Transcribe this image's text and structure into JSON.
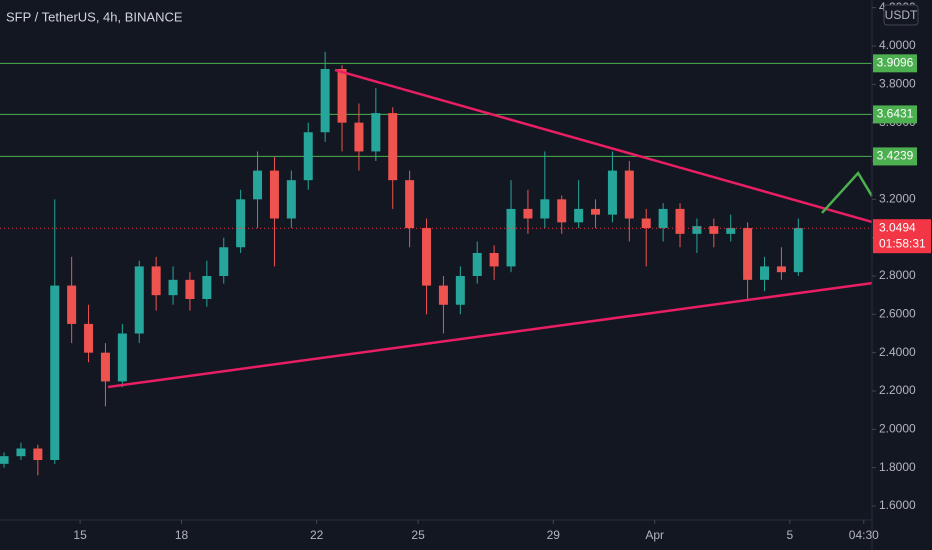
{
  "chart_data": {
    "type": "candlestick",
    "title": "SFP / TetherUS, 4h, BINANCE",
    "currency": "USDT",
    "x": [
      12.75,
      13.25,
      13.75,
      14.25,
      14.75,
      15.25,
      15.75,
      16.25,
      16.75,
      17.25,
      17.75,
      18.25,
      18.75,
      19.25,
      19.75,
      20.25,
      20.75,
      21.25,
      21.75,
      22.25,
      22.75,
      23.25,
      23.75,
      24.25,
      24.75,
      25.25,
      25.75,
      26.25,
      26.75,
      27.25,
      27.75,
      28.25,
      28.75,
      29.25,
      29.75,
      30.25,
      30.75,
      31.25,
      31.75,
      32.25,
      32.75,
      33.25,
      33.75,
      34.25,
      34.75,
      35.25,
      35.75,
      36.25
    ],
    "open": [
      1.82,
      1.86,
      1.9,
      1.84,
      2.75,
      2.55,
      2.4,
      2.25,
      2.5,
      2.85,
      2.7,
      2.78,
      2.68,
      2.8,
      2.95,
      3.2,
      3.35,
      3.1,
      3.3,
      3.55,
      3.88,
      3.6,
      3.45,
      3.65,
      3.3,
      3.05,
      2.75,
      2.65,
      2.8,
      2.92,
      2.85,
      3.15,
      3.1,
      3.2,
      3.08,
      3.15,
      3.12,
      3.35,
      3.1,
      3.05,
      3.15,
      3.02,
      3.06,
      3.02,
      3.05,
      2.78,
      2.85,
      2.82
    ],
    "high": [
      1.88,
      1.93,
      1.92,
      3.2,
      2.9,
      2.65,
      2.45,
      2.55,
      2.88,
      2.9,
      2.85,
      2.82,
      2.88,
      3.0,
      3.25,
      3.45,
      3.42,
      3.35,
      3.6,
      3.97,
      3.9,
      3.7,
      3.78,
      3.68,
      3.35,
      3.1,
      2.8,
      2.85,
      2.98,
      2.96,
      3.3,
      3.25,
      3.45,
      3.22,
      3.3,
      3.2,
      3.45,
      3.4,
      3.15,
      3.18,
      3.18,
      3.1,
      3.1,
      3.12,
      3.08,
      2.9,
      2.95,
      3.1
    ],
    "low": [
      1.8,
      1.84,
      1.76,
      1.82,
      2.45,
      2.35,
      2.12,
      2.22,
      2.45,
      2.62,
      2.65,
      2.62,
      2.64,
      2.76,
      2.92,
      3.05,
      2.85,
      3.05,
      3.25,
      3.5,
      3.45,
      3.35,
      3.4,
      3.15,
      2.95,
      2.6,
      2.5,
      2.6,
      2.76,
      2.78,
      2.82,
      3.02,
      3.05,
      3.02,
      3.05,
      3.05,
      3.08,
      2.98,
      2.85,
      2.98,
      2.95,
      2.92,
      2.95,
      2.98,
      2.68,
      2.72,
      2.78,
      2.8
    ],
    "close": [
      1.86,
      1.9,
      1.84,
      2.75,
      2.55,
      2.4,
      2.25,
      2.5,
      2.85,
      2.7,
      2.78,
      2.68,
      2.8,
      2.95,
      3.2,
      3.35,
      3.1,
      3.3,
      3.55,
      3.88,
      3.6,
      3.45,
      3.65,
      3.3,
      3.05,
      2.75,
      2.65,
      2.8,
      2.92,
      2.85,
      3.15,
      3.1,
      3.2,
      3.08,
      3.15,
      3.12,
      3.35,
      3.1,
      3.05,
      3.15,
      3.02,
      3.06,
      3.02,
      3.05,
      2.78,
      2.85,
      2.82,
      3.05
    ],
    "up_color": "#26a69a",
    "down_color": "#ef5350",
    "xlim": [
      12.63,
      38.43
    ],
    "xticks": [
      15,
      18,
      22,
      25,
      29,
      {
        "value": 32,
        "label": "Apr"
      },
      {
        "value": 36,
        "label": "5"
      },
      {
        "value": 38.1875,
        "label": "04:30"
      }
    ],
    "ylim": [
      1.527,
      4.24
    ],
    "yticks": [
      {
        "value": 1.6,
        "label": "1.6000"
      },
      {
        "value": 1.8,
        "label": "1.8000"
      },
      {
        "value": 2.0,
        "label": "2.0000"
      },
      {
        "value": 2.2,
        "label": "2.2000"
      },
      {
        "value": 2.4,
        "label": "2.4000"
      },
      {
        "value": 2.6,
        "label": "2.6000"
      },
      {
        "value": 2.8,
        "label": "2.8000"
      },
      {
        "value": 3.0,
        "label": "3.0000"
      },
      {
        "value": 3.2,
        "label": "3.2000"
      },
      {
        "value": 3.4,
        "label": "3.4000"
      },
      {
        "value": 3.6,
        "label": "3.6000"
      },
      {
        "value": 3.8,
        "label": "3.8000"
      },
      {
        "value": 4.0,
        "label": "4.0000"
      },
      {
        "value": 4.2,
        "label": "4.2000"
      }
    ],
    "levels": [
      3.9096,
      3.6431,
      3.4239
    ],
    "level_color": "#4caf50",
    "last_price": 3.0494,
    "countdown": "01:58:31",
    "last_price_color": "#f23645",
    "trendlines": [
      {
        "color": "#e91e63",
        "x": [
          22.54,
          38.43
        ],
        "y": [
          3.875,
          3.082
        ]
      },
      {
        "color": "#e91e63",
        "x": [
          15.83,
          38.43
        ],
        "y": [
          2.221,
          2.763
        ]
      },
      {
        "color": "#4caf50",
        "x": [
          36.95,
          38.02,
          38.43
        ],
        "y": [
          3.129,
          3.337,
          3.217
        ]
      }
    ]
  }
}
